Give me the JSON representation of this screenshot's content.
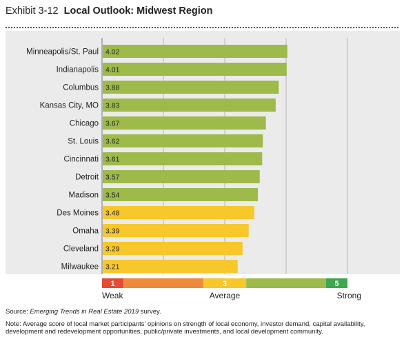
{
  "header": {
    "exhibit": "Exhibit 3-12",
    "title": "Local Outlook: Midwest Region"
  },
  "chart_data": {
    "type": "bar",
    "orientation": "horizontal",
    "title": "Local Outlook: Midwest Region",
    "categories": [
      "Minneapolis/St. Paul",
      "Indianapolis",
      "Columbus",
      "Kansas City, MO",
      "Chicago",
      "St. Louis",
      "Cincinnati",
      "Detroit",
      "Madison",
      "Des Moines",
      "Omaha",
      "Cleveland",
      "Milwaukee"
    ],
    "values": [
      4.02,
      4.01,
      3.88,
      3.83,
      3.67,
      3.62,
      3.61,
      3.57,
      3.54,
      3.48,
      3.39,
      3.29,
      3.21
    ],
    "value_labels": [
      "4.02",
      "4.01",
      "3.88",
      "3.83",
      "3.67",
      "3.62",
      "3.61",
      "3.57",
      "3.54",
      "3.48",
      "3.39",
      "3.29",
      "3.21"
    ],
    "xlim": [
      1,
      5
    ],
    "grid": true,
    "colors": {
      "above_3_5": "#9dba4a",
      "below_3_5": "#f7c72c"
    },
    "color_threshold": 3.5,
    "scale": {
      "min_label": "1",
      "mid_label": "3",
      "max_label": "5",
      "weak_label": "Weak",
      "average_label": "Average",
      "strong_label": "Strong",
      "segments": [
        {
          "from": 1.0,
          "to": 1.35,
          "color": "#e34b35",
          "label": "1"
        },
        {
          "from": 1.35,
          "to": 2.65,
          "color": "#ef8a3a",
          "label": ""
        },
        {
          "from": 2.65,
          "to": 3.35,
          "color": "#f7c72c",
          "label": "3"
        },
        {
          "from": 3.35,
          "to": 4.65,
          "color": "#9dba4a",
          "label": ""
        },
        {
          "from": 4.65,
          "to": 5.0,
          "color": "#3ea74f",
          "label": "5"
        }
      ]
    }
  },
  "footer": {
    "source_prefix": "Source: ",
    "source_italic": "Emerging Trends in Real Estate 2019",
    "source_suffix": " survey.",
    "note": "Note: Average score of local market participants' opinions on strength of local economy, investor demand, capital availability, development and redevelopment opportunities, public/private investments, and local development community."
  }
}
